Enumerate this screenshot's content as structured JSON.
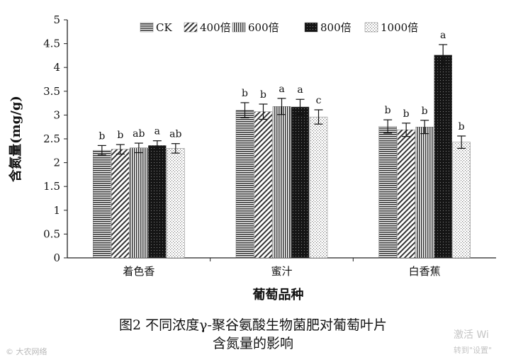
{
  "chart_data": {
    "type": "bar",
    "categories": [
      "着色香",
      "蜜汁",
      "白香蕉"
    ],
    "series": [
      {
        "name": "CK",
        "pattern": "hlines",
        "values": [
          2.26,
          3.1,
          2.76
        ],
        "errors": [
          0.1,
          0.16,
          0.14
        ],
        "letters": [
          "b",
          "b",
          "b"
        ]
      },
      {
        "name": "400倍",
        "pattern": "diag",
        "values": [
          2.28,
          3.07,
          2.69
        ],
        "errors": [
          0.1,
          0.16,
          0.14
        ],
        "letters": [
          "b",
          "b",
          "b"
        ]
      },
      {
        "name": "600倍",
        "pattern": "vlines",
        "values": [
          2.31,
          3.18,
          2.75
        ],
        "errors": [
          0.1,
          0.17,
          0.14
        ],
        "letters": [
          "ab",
          "a",
          "b"
        ]
      },
      {
        "name": "800倍",
        "pattern": "dark",
        "values": [
          2.36,
          3.17,
          4.26
        ],
        "errors": [
          0.1,
          0.16,
          0.22
        ],
        "letters": [
          "a",
          "a",
          "a"
        ]
      },
      {
        "name": "1000倍",
        "pattern": "dots",
        "values": [
          2.3,
          2.96,
          2.43
        ],
        "errors": [
          0.1,
          0.15,
          0.13
        ],
        "letters": [
          "ab",
          "c",
          "b"
        ]
      }
    ],
    "xlabel": "葡萄品种",
    "ylabel": "含氮量(mg/g)",
    "ylim": [
      0,
      5
    ],
    "yticks": [
      "0",
      "0.5",
      "1",
      "1.5",
      "2",
      "2.5",
      "3",
      "3.5",
      "4",
      "4.5",
      "5"
    ],
    "legend_position": "top",
    "grid": false
  },
  "caption": {
    "line1": "图2 不同浓度γ-聚谷氨酸生物菌肥对葡萄叶片",
    "line2": "含氮量的影响"
  },
  "watermarks": {
    "source": "© 大农网络",
    "activate1": "激活 Wi",
    "activate2": "转到\"设置\""
  }
}
